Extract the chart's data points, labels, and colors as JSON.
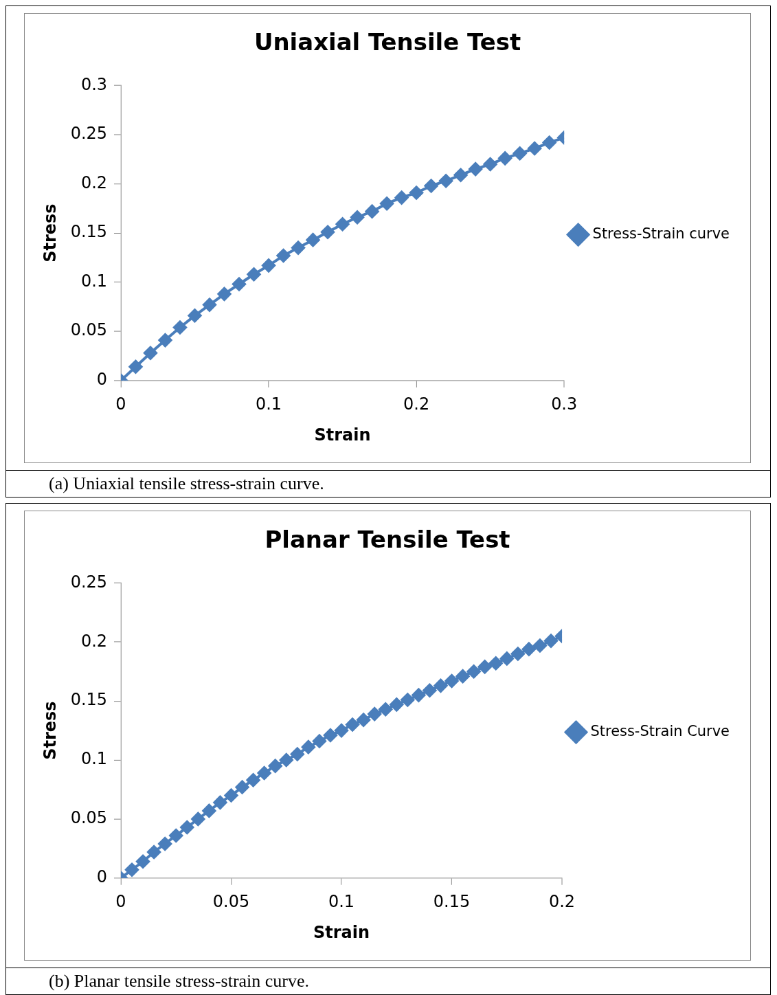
{
  "chart_data": [
    {
      "type": "line",
      "title": "Uniaxial Tensile Test",
      "xlabel": "Strain",
      "ylabel": "Stress",
      "x": [
        0,
        0.01,
        0.02,
        0.03,
        0.04,
        0.05,
        0.06,
        0.07,
        0.08,
        0.09,
        0.1,
        0.11,
        0.12,
        0.13,
        0.14,
        0.15,
        0.16,
        0.17,
        0.18,
        0.19,
        0.2,
        0.21,
        0.22,
        0.23,
        0.24,
        0.25,
        0.26,
        0.27,
        0.28,
        0.29,
        0.3
      ],
      "series": [
        {
          "name": "Stress-Strain curve",
          "color": "#4a7ebb",
          "values": [
            0,
            0.014,
            0.028,
            0.041,
            0.054,
            0.066,
            0.077,
            0.088,
            0.098,
            0.108,
            0.117,
            0.127,
            0.135,
            0.143,
            0.151,
            0.159,
            0.166,
            0.172,
            0.18,
            0.186,
            0.191,
            0.198,
            0.203,
            0.209,
            0.215,
            0.22,
            0.226,
            0.231,
            0.236,
            0.242,
            0.247
          ]
        }
      ],
      "xlim": [
        0,
        0.3
      ],
      "xticks": [
        0,
        0.1,
        0.2,
        0.3
      ],
      "ylim": [
        0,
        0.3
      ],
      "yticks": [
        0,
        0.05,
        0.1,
        0.15,
        0.2,
        0.25,
        0.3
      ],
      "grid": false,
      "legend": "right",
      "marker": "diamond",
      "line_style": "solid",
      "annotations": [
        "(a)  Uniaxial tensile stress-strain curve."
      ]
    },
    {
      "type": "line",
      "title": "Planar Tensile Test",
      "xlabel": "Strain",
      "ylabel": "Stress",
      "x": [
        0,
        0.005,
        0.01,
        0.015,
        0.02,
        0.025,
        0.03,
        0.035,
        0.04,
        0.045,
        0.05,
        0.055,
        0.06,
        0.065,
        0.07,
        0.075,
        0.08,
        0.085,
        0.09,
        0.095,
        0.1,
        0.105,
        0.11,
        0.115,
        0.12,
        0.125,
        0.13,
        0.135,
        0.14,
        0.145,
        0.15,
        0.155,
        0.16,
        0.165,
        0.17,
        0.175,
        0.18,
        0.185,
        0.19,
        0.195,
        0.2
      ],
      "series": [
        {
          "name": "Stress-Strain Curve",
          "color": "#4a7ebb",
          "values": [
            0,
            0.007,
            0.014,
            0.022,
            0.029,
            0.036,
            0.043,
            0.05,
            0.057,
            0.064,
            0.07,
            0.077,
            0.083,
            0.089,
            0.095,
            0.1,
            0.105,
            0.111,
            0.116,
            0.121,
            0.125,
            0.13,
            0.134,
            0.139,
            0.143,
            0.147,
            0.151,
            0.155,
            0.159,
            0.163,
            0.167,
            0.171,
            0.175,
            0.179,
            0.182,
            0.186,
            0.19,
            0.194,
            0.197,
            0.201,
            0.205
          ]
        }
      ],
      "xlim": [
        0,
        0.2
      ],
      "xticks": [
        0,
        0.05,
        0.1,
        0.15,
        0.2
      ],
      "ylim": [
        0,
        0.25
      ],
      "yticks": [
        0,
        0.05,
        0.1,
        0.15,
        0.2,
        0.25
      ],
      "grid": false,
      "legend": "right",
      "marker": "diamond",
      "line_style": "solid",
      "annotations": [
        "(b)  Planar tensile stress-strain curve."
      ]
    }
  ]
}
